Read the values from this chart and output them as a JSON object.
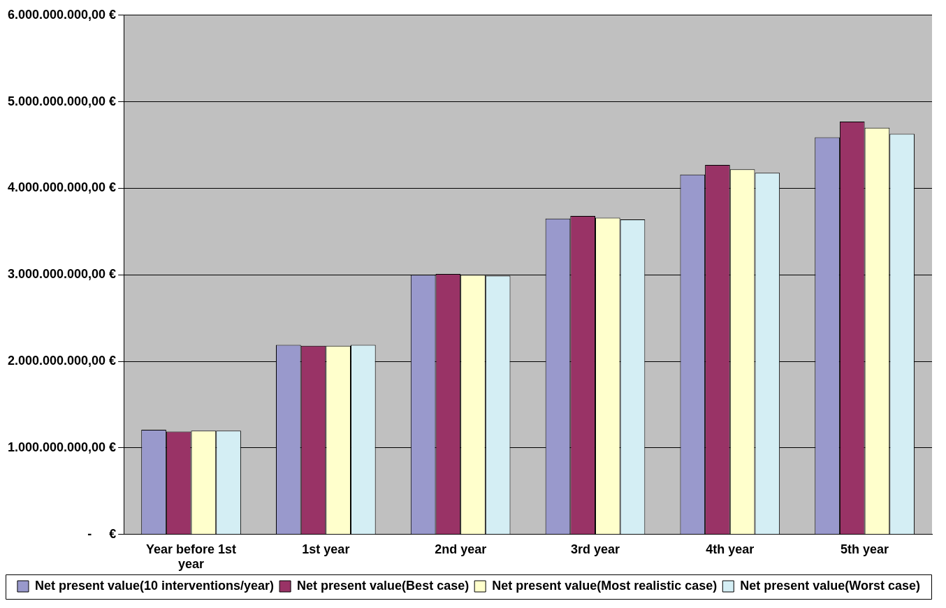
{
  "chart_data": {
    "type": "bar",
    "categories": [
      "Year before 1st year",
      "1st year",
      "2nd year",
      "3rd year",
      "4th year",
      "5th year"
    ],
    "series": [
      {
        "name": "Net present value(10 interventions/year)",
        "color": "#9999cc",
        "values": [
          1210000000,
          2190000000,
          3000000000,
          3650000000,
          4160000000,
          4590000000
        ]
      },
      {
        "name": "Net present value(Best case)",
        "color": "#993366",
        "values": [
          1190000000,
          2180000000,
          3010000000,
          3680000000,
          4270000000,
          4770000000
        ]
      },
      {
        "name": "Net present value(Most realistic case)",
        "color": "#ffffcc",
        "values": [
          1200000000,
          2180000000,
          3000000000,
          3660000000,
          4220000000,
          4700000000
        ]
      },
      {
        "name": "Net present value(Worst case)",
        "color": "#d4eef4",
        "values": [
          1200000000,
          2190000000,
          2990000000,
          3640000000,
          4180000000,
          4630000000
        ]
      }
    ],
    "ylim": [
      0,
      6000000000
    ],
    "yticks": [
      {
        "value": 0,
        "label": "-     €"
      },
      {
        "value": 1000000000,
        "label": "1.000.000.000,00 €"
      },
      {
        "value": 2000000000,
        "label": "2.000.000.000,00 €"
      },
      {
        "value": 3000000000,
        "label": "3.000.000.000,00 €"
      },
      {
        "value": 4000000000,
        "label": "4.000.000.000,00 €"
      },
      {
        "value": 5000000000,
        "label": "5.000.000.000,00 €"
      },
      {
        "value": 6000000000,
        "label": "6.000.000.000,00 €"
      }
    ],
    "grid": "y",
    "legend": "bottom"
  }
}
